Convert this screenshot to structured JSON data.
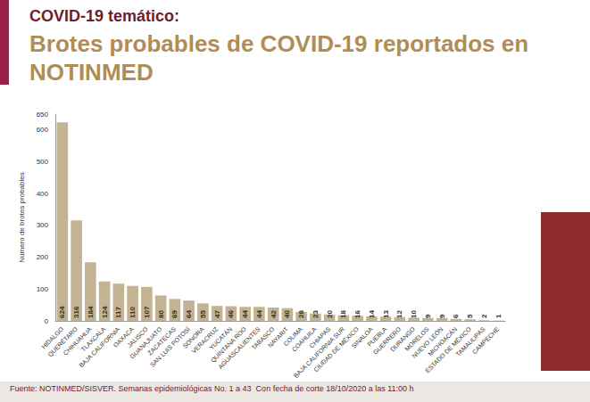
{
  "chart_data": {
    "type": "bar",
    "subtitle": "COVID-19 temático:",
    "title": "Brotes probables de COVID-19 reportados en NOTINMED",
    "y_label": "Número de brotes probables",
    "source": "Fuente: NOTINMED/SISVER. Semanas epidemiológicas No. 1 a 43  Con fecha de corte 18/10/2020 a las 11:00 h",
    "categories": [
      "HIDALGO",
      "QUERÉTARO",
      "CHIHUAHUA",
      "TLAXCALA",
      "BAJA CALIFORNIA",
      "OAXACA",
      "JALISCO",
      "GUANAJUATO",
      "ZACATECAS",
      "SAN LUIS POTOSÍ",
      "SONORA",
      "VERACRUZ",
      "YUCATÁN",
      "QUINTANA ROO",
      "AGUASCALIENTES",
      "TABASCO",
      "NAYARIT",
      "COLIMA",
      "COAHUILA",
      "CHIAPAS",
      "BAJA CALIFORNIA SUR",
      "CIUDAD DE MÉXICO",
      "SINALOA",
      "PUEBLA",
      "GUERRERO",
      "DURANGO",
      "MORELOS",
      "NUEVO LEÓN",
      "MICHOACÁN",
      "ESTADO DE MÉXICO",
      "TAMAULIPAS",
      "CAMPECHE"
    ],
    "values": [
      624,
      316,
      184,
      124,
      117,
      110,
      107,
      80,
      69,
      64,
      55,
      47,
      46,
      44,
      44,
      42,
      40,
      28,
      23,
      20,
      18,
      16,
      14,
      13,
      12,
      10,
      9,
      9,
      6,
      5,
      2,
      1
    ],
    "color": "#c4b393",
    "ylim": [
      0,
      650
    ],
    "yticks": [
      0,
      100,
      200,
      300,
      400,
      500,
      600
    ],
    "grid": false,
    "data_labels": true
  }
}
